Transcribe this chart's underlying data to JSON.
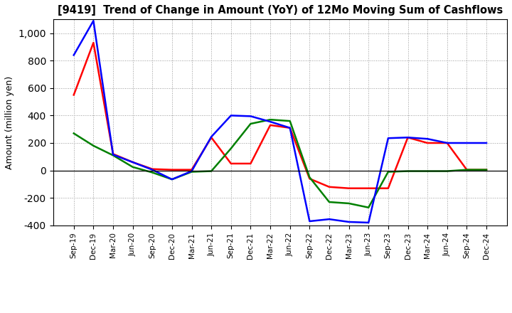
{
  "title": "[9419]  Trend of Change in Amount (YoY) of 12Mo Moving Sum of Cashflows",
  "ylabel": "Amount (million yen)",
  "x_labels": [
    "Sep-19",
    "Dec-19",
    "Mar-20",
    "Jun-20",
    "Sep-20",
    "Dec-20",
    "Mar-21",
    "Jun-21",
    "Sep-21",
    "Dec-21",
    "Mar-22",
    "Jun-22",
    "Sep-22",
    "Dec-22",
    "Mar-23",
    "Jun-23",
    "Sep-23",
    "Dec-23",
    "Mar-24",
    "Jun-24",
    "Sep-24",
    "Dec-24"
  ],
  "operating": [
    550,
    930,
    120,
    60,
    10,
    5,
    5,
    240,
    50,
    50,
    330,
    310,
    -60,
    -120,
    -130,
    -130,
    -130,
    240,
    200,
    200,
    5,
    5
  ],
  "investing": [
    270,
    180,
    110,
    25,
    -15,
    -65,
    -10,
    -5,
    160,
    340,
    370,
    360,
    -50,
    -230,
    -240,
    -270,
    -10,
    -5,
    -5,
    -5,
    5,
    5
  ],
  "free": [
    840,
    1090,
    115,
    60,
    5,
    -65,
    -5,
    245,
    400,
    395,
    355,
    310,
    -370,
    -355,
    -375,
    -380,
    235,
    240,
    230,
    200,
    200,
    200
  ],
  "operating_color": "#ff0000",
  "investing_color": "#008000",
  "free_color": "#0000ff",
  "ylim": [
    -400,
    1100
  ],
  "yticks": [
    -400,
    -200,
    0,
    200,
    400,
    600,
    800,
    1000
  ],
  "background_color": "#ffffff",
  "grid_color": "#999999"
}
